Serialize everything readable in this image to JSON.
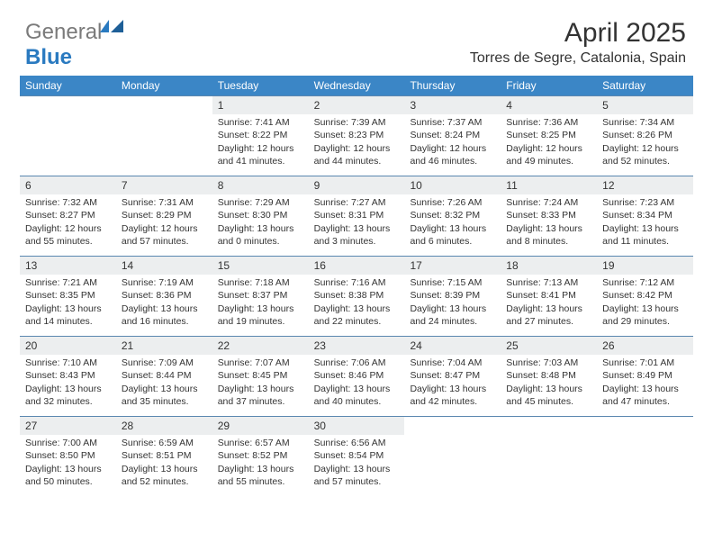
{
  "logo": {
    "text_gray": "General",
    "text_blue": "Blue"
  },
  "title": "April 2025",
  "location": "Torres de Segre, Catalonia, Spain",
  "colors": {
    "header_bg": "#3b86c6",
    "header_text": "#ffffff",
    "daynum_bg": "#eceeef",
    "rule": "#5a87b0",
    "logo_gray": "#7a7a7a",
    "logo_blue": "#2a7ac0",
    "body_text": "#333333",
    "page_bg": "#ffffff"
  },
  "typography": {
    "title_fontsize": 30,
    "location_fontsize": 16,
    "dow_fontsize": 12,
    "daynum_fontsize": 12,
    "cell_fontsize": 10.5
  },
  "days_of_week": [
    "Sunday",
    "Monday",
    "Tuesday",
    "Wednesday",
    "Thursday",
    "Friday",
    "Saturday"
  ],
  "weeks": [
    [
      {
        "n": "",
        "sunrise": "",
        "sunset": "",
        "daylight": ""
      },
      {
        "n": "",
        "sunrise": "",
        "sunset": "",
        "daylight": ""
      },
      {
        "n": "1",
        "sunrise": "Sunrise: 7:41 AM",
        "sunset": "Sunset: 8:22 PM",
        "daylight": "Daylight: 12 hours and 41 minutes."
      },
      {
        "n": "2",
        "sunrise": "Sunrise: 7:39 AM",
        "sunset": "Sunset: 8:23 PM",
        "daylight": "Daylight: 12 hours and 44 minutes."
      },
      {
        "n": "3",
        "sunrise": "Sunrise: 7:37 AM",
        "sunset": "Sunset: 8:24 PM",
        "daylight": "Daylight: 12 hours and 46 minutes."
      },
      {
        "n": "4",
        "sunrise": "Sunrise: 7:36 AM",
        "sunset": "Sunset: 8:25 PM",
        "daylight": "Daylight: 12 hours and 49 minutes."
      },
      {
        "n": "5",
        "sunrise": "Sunrise: 7:34 AM",
        "sunset": "Sunset: 8:26 PM",
        "daylight": "Daylight: 12 hours and 52 minutes."
      }
    ],
    [
      {
        "n": "6",
        "sunrise": "Sunrise: 7:32 AM",
        "sunset": "Sunset: 8:27 PM",
        "daylight": "Daylight: 12 hours and 55 minutes."
      },
      {
        "n": "7",
        "sunrise": "Sunrise: 7:31 AM",
        "sunset": "Sunset: 8:29 PM",
        "daylight": "Daylight: 12 hours and 57 minutes."
      },
      {
        "n": "8",
        "sunrise": "Sunrise: 7:29 AM",
        "sunset": "Sunset: 8:30 PM",
        "daylight": "Daylight: 13 hours and 0 minutes."
      },
      {
        "n": "9",
        "sunrise": "Sunrise: 7:27 AM",
        "sunset": "Sunset: 8:31 PM",
        "daylight": "Daylight: 13 hours and 3 minutes."
      },
      {
        "n": "10",
        "sunrise": "Sunrise: 7:26 AM",
        "sunset": "Sunset: 8:32 PM",
        "daylight": "Daylight: 13 hours and 6 minutes."
      },
      {
        "n": "11",
        "sunrise": "Sunrise: 7:24 AM",
        "sunset": "Sunset: 8:33 PM",
        "daylight": "Daylight: 13 hours and 8 minutes."
      },
      {
        "n": "12",
        "sunrise": "Sunrise: 7:23 AM",
        "sunset": "Sunset: 8:34 PM",
        "daylight": "Daylight: 13 hours and 11 minutes."
      }
    ],
    [
      {
        "n": "13",
        "sunrise": "Sunrise: 7:21 AM",
        "sunset": "Sunset: 8:35 PM",
        "daylight": "Daylight: 13 hours and 14 minutes."
      },
      {
        "n": "14",
        "sunrise": "Sunrise: 7:19 AM",
        "sunset": "Sunset: 8:36 PM",
        "daylight": "Daylight: 13 hours and 16 minutes."
      },
      {
        "n": "15",
        "sunrise": "Sunrise: 7:18 AM",
        "sunset": "Sunset: 8:37 PM",
        "daylight": "Daylight: 13 hours and 19 minutes."
      },
      {
        "n": "16",
        "sunrise": "Sunrise: 7:16 AM",
        "sunset": "Sunset: 8:38 PM",
        "daylight": "Daylight: 13 hours and 22 minutes."
      },
      {
        "n": "17",
        "sunrise": "Sunrise: 7:15 AM",
        "sunset": "Sunset: 8:39 PM",
        "daylight": "Daylight: 13 hours and 24 minutes."
      },
      {
        "n": "18",
        "sunrise": "Sunrise: 7:13 AM",
        "sunset": "Sunset: 8:41 PM",
        "daylight": "Daylight: 13 hours and 27 minutes."
      },
      {
        "n": "19",
        "sunrise": "Sunrise: 7:12 AM",
        "sunset": "Sunset: 8:42 PM",
        "daylight": "Daylight: 13 hours and 29 minutes."
      }
    ],
    [
      {
        "n": "20",
        "sunrise": "Sunrise: 7:10 AM",
        "sunset": "Sunset: 8:43 PM",
        "daylight": "Daylight: 13 hours and 32 minutes."
      },
      {
        "n": "21",
        "sunrise": "Sunrise: 7:09 AM",
        "sunset": "Sunset: 8:44 PM",
        "daylight": "Daylight: 13 hours and 35 minutes."
      },
      {
        "n": "22",
        "sunrise": "Sunrise: 7:07 AM",
        "sunset": "Sunset: 8:45 PM",
        "daylight": "Daylight: 13 hours and 37 minutes."
      },
      {
        "n": "23",
        "sunrise": "Sunrise: 7:06 AM",
        "sunset": "Sunset: 8:46 PM",
        "daylight": "Daylight: 13 hours and 40 minutes."
      },
      {
        "n": "24",
        "sunrise": "Sunrise: 7:04 AM",
        "sunset": "Sunset: 8:47 PM",
        "daylight": "Daylight: 13 hours and 42 minutes."
      },
      {
        "n": "25",
        "sunrise": "Sunrise: 7:03 AM",
        "sunset": "Sunset: 8:48 PM",
        "daylight": "Daylight: 13 hours and 45 minutes."
      },
      {
        "n": "26",
        "sunrise": "Sunrise: 7:01 AM",
        "sunset": "Sunset: 8:49 PM",
        "daylight": "Daylight: 13 hours and 47 minutes."
      }
    ],
    [
      {
        "n": "27",
        "sunrise": "Sunrise: 7:00 AM",
        "sunset": "Sunset: 8:50 PM",
        "daylight": "Daylight: 13 hours and 50 minutes."
      },
      {
        "n": "28",
        "sunrise": "Sunrise: 6:59 AM",
        "sunset": "Sunset: 8:51 PM",
        "daylight": "Daylight: 13 hours and 52 minutes."
      },
      {
        "n": "29",
        "sunrise": "Sunrise: 6:57 AM",
        "sunset": "Sunset: 8:52 PM",
        "daylight": "Daylight: 13 hours and 55 minutes."
      },
      {
        "n": "30",
        "sunrise": "Sunrise: 6:56 AM",
        "sunset": "Sunset: 8:54 PM",
        "daylight": "Daylight: 13 hours and 57 minutes."
      },
      {
        "n": "",
        "sunrise": "",
        "sunset": "",
        "daylight": ""
      },
      {
        "n": "",
        "sunrise": "",
        "sunset": "",
        "daylight": ""
      },
      {
        "n": "",
        "sunrise": "",
        "sunset": "",
        "daylight": ""
      }
    ]
  ]
}
